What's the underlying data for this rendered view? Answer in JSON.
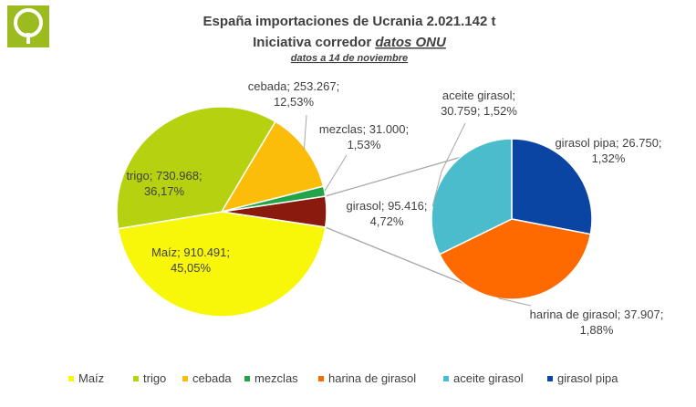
{
  "colors": {
    "logo_green": "#9bbb1e",
    "Maíz": "#f8f70a",
    "trigo": "#b5d10f",
    "cebada": "#fbbc0a",
    "mezclas": "#22a44a",
    "harina de girasol": "#ff6a00",
    "aceite girasol": "#4bbccb",
    "girasol pipa": "#0b45a3",
    "girasol_slice": "#8b1a0e",
    "connector": "#a6a6a6"
  },
  "chart_data": {
    "type": "pie",
    "title": "España importaciones de Ucrania 2.021.142 t",
    "subtitle_prefix": "Iniciativa corredor ",
    "subtitle_link": "datos  ONU",
    "note": "datos a 14 de noviembre",
    "main_pie": [
      {
        "key": "Maíz",
        "value": 910491,
        "label_lines": [
          "Maíz;  910.491;",
          "45,05%"
        ]
      },
      {
        "key": "trigo",
        "value": 730968,
        "label_lines": [
          "trigo; 730.968;",
          "36,17%"
        ]
      },
      {
        "key": "cebada",
        "value": 253267,
        "label_lines": [
          "cebada; 253.267;",
          "12,53%"
        ]
      },
      {
        "key": "mezclas",
        "value": 31000,
        "label_lines": [
          "mezclas; 31.000;",
          "1,53%"
        ]
      },
      {
        "key": "girasol",
        "value": 95416,
        "label_lines": [
          "girasol; 95.416;",
          "4,72%"
        ]
      }
    ],
    "sub_pie": [
      {
        "key": "aceite girasol",
        "value": 30759,
        "label_lines": [
          "aceite girasol;",
          "30.759; 1,52%"
        ]
      },
      {
        "key": "girasol pipa",
        "value": 26750,
        "label_lines": [
          "girasol pipa; 26.750;",
          "1,32%"
        ]
      },
      {
        "key": "harina de girasol",
        "value": 37907,
        "label_lines": [
          "harina de girasol; 37.907;",
          "1,88%"
        ]
      }
    ],
    "legend": [
      "Maíz",
      "trigo",
      "cebada",
      "mezclas",
      "harina de girasol",
      "aceite girasol",
      "girasol pipa"
    ],
    "legend_position": "bottom"
  }
}
